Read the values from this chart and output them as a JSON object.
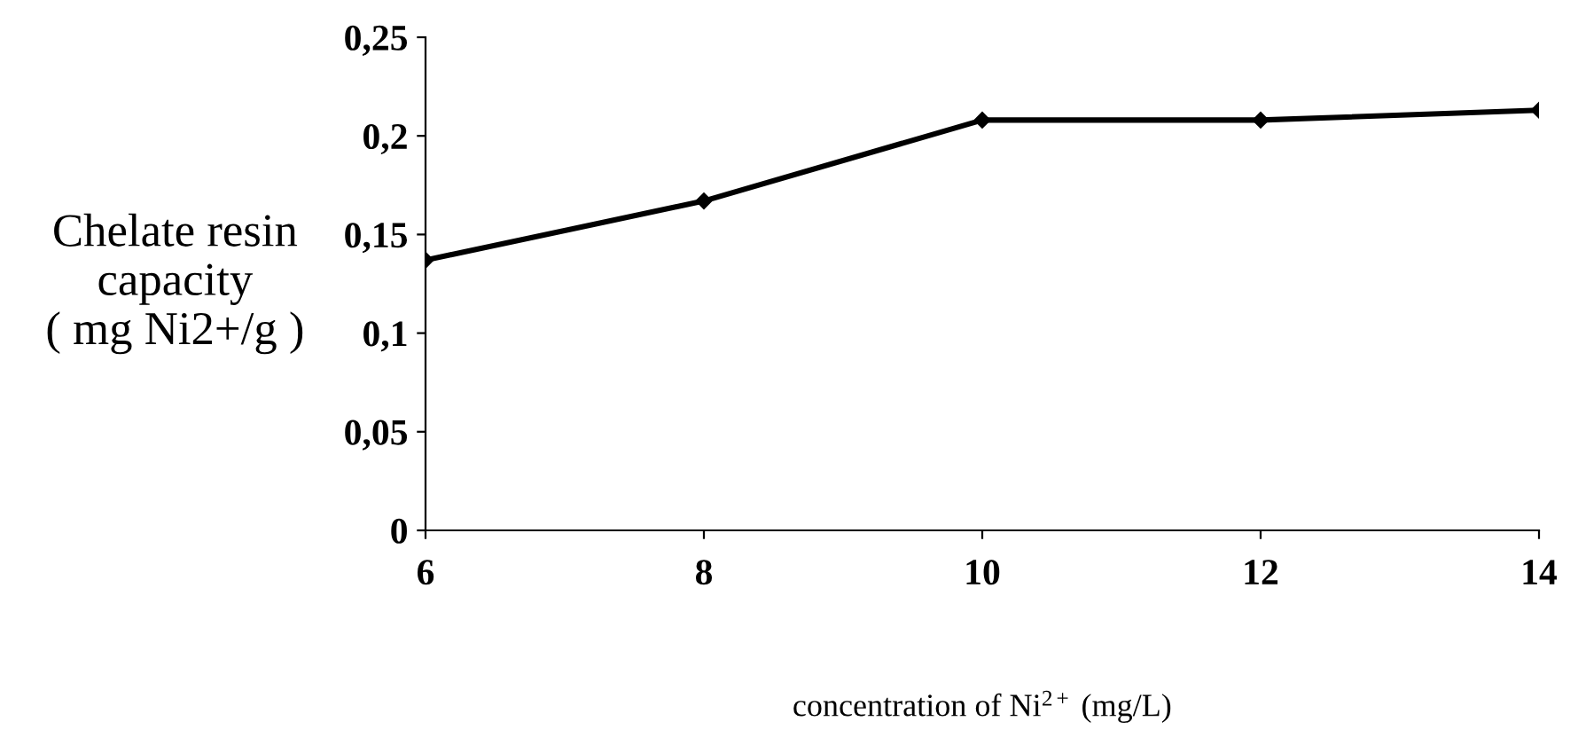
{
  "chart_data": {
    "type": "line",
    "xlabel": "concentration of Ni$^{2+}$ (mg/L)",
    "ylabel": "Chelate resin\ncapacity\n( mg Ni2+/g )",
    "x": [
      6,
      8,
      10,
      12,
      14
    ],
    "series": [
      {
        "color": "#000000",
        "values": [
          0.137,
          0.167,
          0.208,
          0.208,
          0.213
        ]
      }
    ],
    "xlim": [
      6,
      14
    ],
    "ylim": [
      0,
      0.25
    ],
    "xticks": [
      6,
      8,
      10,
      12,
      14
    ],
    "yticks": [
      0,
      {
        "value": 0.05,
        "label": "0,05"
      },
      {
        "value": 0.1,
        "label": "0,1"
      },
      {
        "value": 0.15,
        "label": "0,15"
      },
      {
        "value": 0.2,
        "label": "0,2"
      },
      {
        "value": 0.25,
        "label": "0,25"
      }
    ],
    "marker": "diamond",
    "line_style": "solid",
    "grid": false,
    "legend": false
  }
}
